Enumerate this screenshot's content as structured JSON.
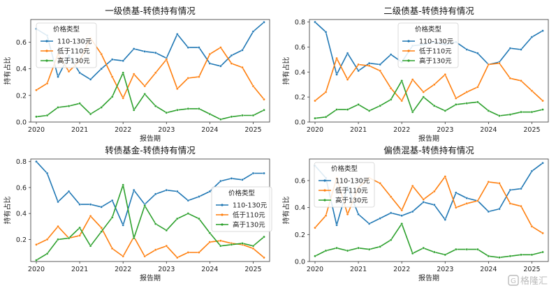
{
  "chart_data": [
    {
      "type": "line",
      "title": "一级债基-转债持有情况",
      "xlabel": "报告期",
      "ylabel": "持有占比",
      "x_ticks": [
        "2020",
        "2021",
        "2022",
        "2023",
        "2024",
        "2025"
      ],
      "y_ticks": [
        "0.0",
        "0.2",
        "0.4",
        "0.6"
      ],
      "ylim": [
        0,
        0.77
      ],
      "legend_title": "价格类型",
      "legend_position": "upper-left",
      "series": [
        {
          "name": "110-130元",
          "color": "#1f77b4",
          "values": [
            0.7,
            0.65,
            0.34,
            0.5,
            0.37,
            0.32,
            0.4,
            0.47,
            0.46,
            0.55,
            0.53,
            0.52,
            0.48,
            0.66,
            0.56,
            0.56,
            0.44,
            0.42,
            0.5,
            0.54,
            0.68,
            0.75
          ]
        },
        {
          "name": "低于110元",
          "color": "#ff7f0e",
          "values": [
            0.24,
            0.29,
            0.51,
            0.38,
            0.46,
            0.63,
            0.51,
            0.34,
            0.18,
            0.36,
            0.27,
            0.37,
            0.47,
            0.25,
            0.33,
            0.34,
            0.51,
            0.56,
            0.44,
            0.41,
            0.27,
            0.17
          ]
        },
        {
          "name": "高于130元",
          "color": "#2ca02c",
          "values": [
            0.04,
            0.05,
            0.11,
            0.12,
            0.14,
            0.06,
            0.11,
            0.19,
            0.37,
            0.09,
            0.21,
            0.12,
            0.07,
            0.09,
            0.1,
            0.1,
            0.06,
            0.02,
            0.04,
            0.05,
            0.05,
            0.09
          ]
        }
      ]
    },
    {
      "type": "line",
      "title": "二级债基-转债持有情况",
      "xlabel": "报告期",
      "ylabel": "持有占比",
      "x_ticks": [
        "2020",
        "2021",
        "2022",
        "2023",
        "2024",
        "2025"
      ],
      "y_ticks": [
        "0.0",
        "0.2",
        "0.4",
        "0.6",
        "0.8"
      ],
      "ylim": [
        0,
        0.82
      ],
      "legend_title": "价格类型",
      "legend_position": "upper-center",
      "series": [
        {
          "name": "110-130元",
          "color": "#1f77b4",
          "values": [
            0.8,
            0.72,
            0.38,
            0.55,
            0.41,
            0.47,
            0.46,
            0.54,
            0.48,
            0.61,
            0.62,
            0.64,
            0.62,
            0.64,
            0.58,
            0.55,
            0.46,
            0.48,
            0.59,
            0.58,
            0.68,
            0.73
          ]
        },
        {
          "name": "低于110元",
          "color": "#ff7f0e",
          "values": [
            0.17,
            0.24,
            0.51,
            0.34,
            0.46,
            0.45,
            0.41,
            0.27,
            0.17,
            0.34,
            0.24,
            0.3,
            0.38,
            0.19,
            0.24,
            0.28,
            0.46,
            0.47,
            0.35,
            0.33,
            0.25,
            0.17
          ]
        },
        {
          "name": "高于130元",
          "color": "#2ca02c",
          "values": [
            0.03,
            0.04,
            0.1,
            0.1,
            0.14,
            0.09,
            0.13,
            0.18,
            0.33,
            0.08,
            0.2,
            0.13,
            0.09,
            0.14,
            0.15,
            0.16,
            0.09,
            0.05,
            0.06,
            0.08,
            0.08,
            0.1
          ]
        }
      ]
    },
    {
      "type": "line",
      "title": "转债基金-转债持有情况",
      "xlabel": "报告期",
      "ylabel": "持有占比",
      "x_ticks": [
        "2020",
        "2021",
        "2022",
        "2023",
        "2024",
        "2025"
      ],
      "y_ticks": [
        "0.2",
        "0.4",
        "0.6",
        "0.8"
      ],
      "ylim": [
        0.03,
        0.82
      ],
      "legend_title": "价格类型",
      "legend_position": "center-right",
      "series": [
        {
          "name": "110-130元",
          "color": "#1f77b4",
          "values": [
            0.8,
            0.71,
            0.49,
            0.57,
            0.47,
            0.47,
            0.45,
            0.5,
            0.31,
            0.58,
            0.47,
            0.55,
            0.58,
            0.57,
            0.5,
            0.53,
            0.57,
            0.65,
            0.67,
            0.66,
            0.71,
            0.71
          ]
        },
        {
          "name": "低于110元",
          "color": "#ff7f0e",
          "values": [
            0.16,
            0.2,
            0.3,
            0.21,
            0.23,
            0.38,
            0.29,
            0.13,
            0.07,
            0.22,
            0.07,
            0.12,
            0.15,
            0.06,
            0.1,
            0.1,
            0.18,
            0.19,
            0.17,
            0.16,
            0.13,
            0.06
          ]
        },
        {
          "name": "高于130元",
          "color": "#2ca02c",
          "values": [
            0.04,
            0.09,
            0.2,
            0.21,
            0.29,
            0.15,
            0.26,
            0.37,
            0.62,
            0.21,
            0.46,
            0.32,
            0.27,
            0.36,
            0.4,
            0.36,
            0.25,
            0.15,
            0.16,
            0.17,
            0.15,
            0.22
          ]
        }
      ]
    },
    {
      "type": "line",
      "title": "偏债混基-转债持有情况",
      "xlabel": "报告期",
      "ylabel": "持有占比",
      "x_ticks": [
        "2020",
        "2021",
        "2022",
        "2023",
        "2024",
        "2025"
      ],
      "y_ticks": [
        "0.0",
        "0.2",
        "0.4",
        "0.6"
      ],
      "ylim": [
        0,
        0.76
      ],
      "legend_title": "价格类型",
      "legend_position": "upper-left",
      "series": [
        {
          "name": "110-130元",
          "color": "#1f77b4",
          "values": [
            0.71,
            0.62,
            0.27,
            0.55,
            0.35,
            0.28,
            0.32,
            0.36,
            0.34,
            0.37,
            0.44,
            0.42,
            0.31,
            0.51,
            0.47,
            0.45,
            0.37,
            0.39,
            0.53,
            0.54,
            0.67,
            0.73
          ]
        },
        {
          "name": "低于110元",
          "color": "#ff7f0e",
          "values": [
            0.25,
            0.34,
            0.62,
            0.35,
            0.55,
            0.62,
            0.58,
            0.48,
            0.38,
            0.56,
            0.46,
            0.52,
            0.63,
            0.4,
            0.43,
            0.45,
            0.59,
            0.58,
            0.43,
            0.41,
            0.26,
            0.21
          ]
        },
        {
          "name": "高于130元",
          "color": "#2ca02c",
          "values": [
            0.04,
            0.08,
            0.1,
            0.08,
            0.1,
            0.09,
            0.11,
            0.16,
            0.28,
            0.06,
            0.1,
            0.07,
            0.05,
            0.09,
            0.09,
            0.09,
            0.04,
            0.03,
            0.04,
            0.05,
            0.05,
            0.07
          ]
        }
      ]
    }
  ],
  "watermark": {
    "text": "格隆汇",
    "icon": "gelonghui-logo-icon"
  }
}
